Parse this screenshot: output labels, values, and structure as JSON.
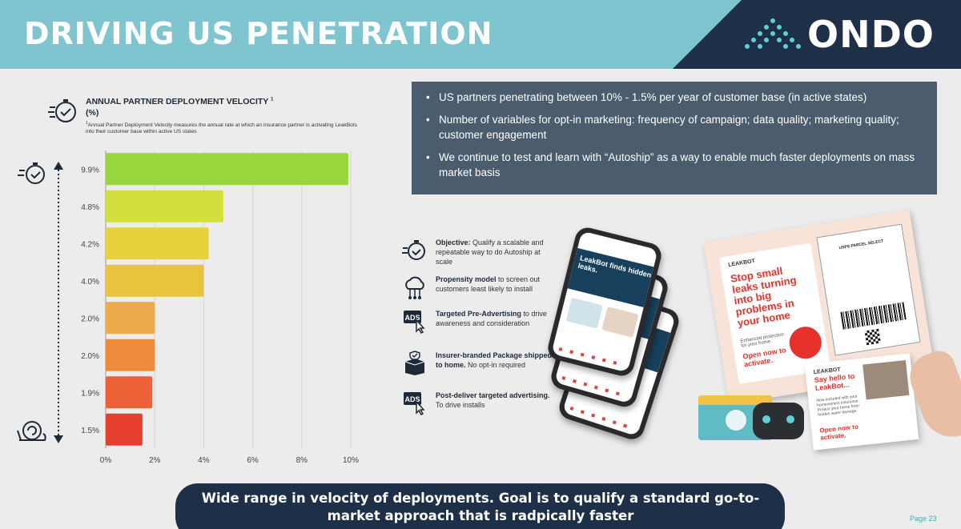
{
  "header": {
    "title": "DRIVING US PENETRATION",
    "logo_text": "ONDO"
  },
  "chart_header": {
    "title": "ANNUAL PARTNER DEPLOYMENT VELOCITY",
    "title_sup": "1",
    "unit": "(%)",
    "note_sup": "1",
    "note": "Annual Partner Deployment Velocity measures the annual rate at which an insurance partner is activating LeakBots into their customer base within active US states"
  },
  "chart_data": {
    "type": "bar",
    "orientation": "horizontal",
    "categories": [
      "9.9%",
      "4.8%",
      "4.2%",
      "4.0%",
      "2.0%",
      "2.0%",
      "1.9%",
      "1.5%"
    ],
    "values": [
      9.9,
      4.8,
      4.2,
      4.0,
      2.0,
      2.0,
      1.9,
      1.5
    ],
    "colors": [
      "#98d63c",
      "#d3df3c",
      "#e7d13c",
      "#e9c43e",
      "#edac4c",
      "#ee8a3a",
      "#ec6138",
      "#e84030"
    ],
    "xlim": [
      0,
      10
    ],
    "xticks": [
      "0%",
      "2%",
      "4%",
      "6%",
      "8%",
      "10%"
    ],
    "grid": true,
    "title": "",
    "xlabel": "",
    "ylabel": ""
  },
  "bullets": [
    "US partners penetrating between 10% - 1.5% per year of customer base (in active states)",
    "Number of variables for opt-in marketing: frequency of campaign; data quality; marketing quality; customer engagement",
    "We continue to test and learn with “Autoship” as a way to enable much faster deployments on mass market basis"
  ],
  "steps": [
    {
      "icon": "stopwatch-check-icon",
      "bold": "Objective:",
      "text": " Qualify a scalable and repeatable way to do Autoship at scale"
    },
    {
      "icon": "cloud-network-icon",
      "bold": "Propensity model",
      "text": " to screen out customers least likely to install"
    },
    {
      "icon": "ads-click-icon",
      "bold": "Targeted Pre-Advertising",
      "text": " to drive awareness and consideration"
    },
    {
      "icon": "package-shield-icon",
      "bold": "Insurer-branded Package shipped to home.",
      "text": "  No opt-in required"
    },
    {
      "icon": "ads-click-icon",
      "bold": "Post-deliver targeted advertising.",
      "text": "  To drive installs"
    }
  ],
  "phones": {
    "headline": "LeakBot finds hidden leaks."
  },
  "mailer": {
    "brand": "LEAKBOT",
    "headline": "Stop small leaks turning into big problems in your home",
    "sub": "Enhanced protection for your home.",
    "cta": "Open now to activate.",
    "label_title": "USPS PARCEL SELECT",
    "card_headline": "Say hello to LeakBot...",
    "card_desc": "Now included with your homeowners insurance. Protect your home from hidden water damage.",
    "card_cta": "Open now to activate."
  },
  "banner": "Wide range in velocity of deployments. Goal is to qualify a standard go-to-market approach that is radpically faster",
  "page_number": "Page 23"
}
